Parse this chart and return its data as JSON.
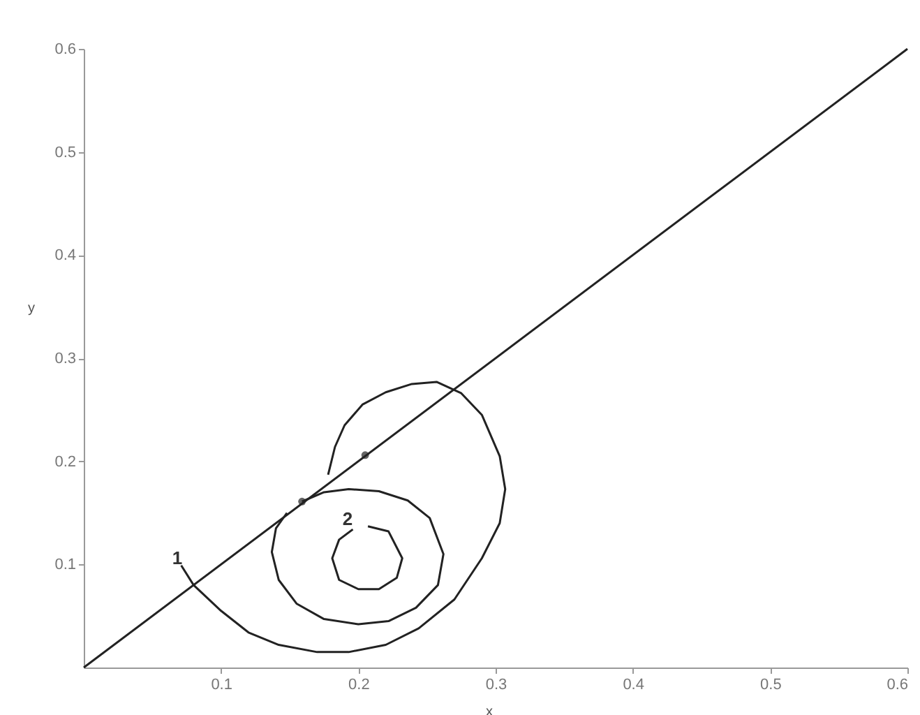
{
  "chart_data": {
    "type": "line",
    "xlabel": "x",
    "ylabel": "y",
    "xlim": [
      0,
      0.6
    ],
    "ylim": [
      0,
      0.6
    ],
    "xticks": [
      0.1,
      0.2,
      0.3,
      0.4,
      0.5,
      0.6
    ],
    "yticks": [
      0.1,
      0.2,
      0.3,
      0.4,
      0.5,
      0.6
    ],
    "grid": false,
    "legend": false,
    "line_style": "solid",
    "series": [
      {
        "color": "#222222",
        "x": [
          0,
          0.6
        ],
        "values": [
          0,
          0.6
        ]
      },
      {
        "color": "#222222",
        "x": [
          0.071,
          0.08,
          0.1,
          0.12,
          0.142,
          0.17,
          0.193,
          0.22,
          0.244,
          0.27,
          0.29,
          0.303,
          0.307,
          0.303,
          0.29,
          0.275,
          0.257,
          0.239,
          0.22,
          0.203,
          0.19,
          0.183,
          0.178
        ],
        "values": [
          0.099,
          0.08,
          0.055,
          0.034,
          0.022,
          0.015,
          0.015,
          0.022,
          0.038,
          0.066,
          0.106,
          0.14,
          0.173,
          0.205,
          0.245,
          0.266,
          0.277,
          0.275,
          0.267,
          0.255,
          0.235,
          0.214,
          0.187
        ]
      },
      {
        "color": "#222222",
        "x": [
          0.159,
          0.175,
          0.193,
          0.215,
          0.236,
          0.252,
          0.262,
          0.258,
          0.242,
          0.222,
          0.2,
          0.175,
          0.155,
          0.142,
          0.137,
          0.14,
          0.148
        ],
        "values": [
          0.161,
          0.17,
          0.173,
          0.171,
          0.162,
          0.145,
          0.11,
          0.08,
          0.058,
          0.045,
          0.042,
          0.047,
          0.062,
          0.085,
          0.112,
          0.135,
          0.15
        ]
      },
      {
        "color": "#222222",
        "x": [
          0.207,
          0.222,
          0.232,
          0.228,
          0.215,
          0.2,
          0.186,
          0.181,
          0.186,
          0.196
        ],
        "values": [
          0.137,
          0.132,
          0.106,
          0.087,
          0.076,
          0.076,
          0.085,
          0.106,
          0.124,
          0.134
        ]
      },
      {
        "type": "scatter",
        "marker": "circle",
        "color": "#222222",
        "x": [
          0.159,
          0.205
        ],
        "values": [
          0.161,
          0.206
        ]
      }
    ],
    "annotations": [
      "1",
      "2"
    ]
  }
}
